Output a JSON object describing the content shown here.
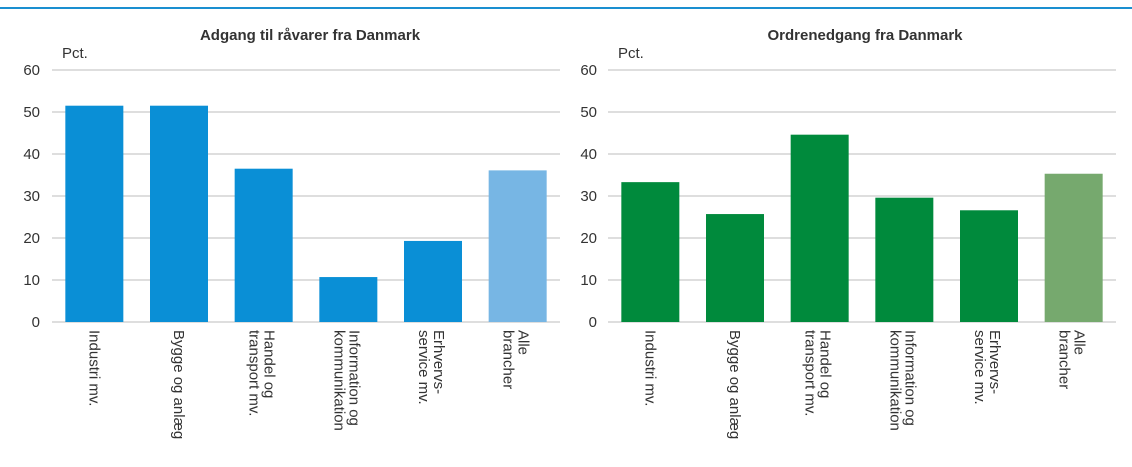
{
  "chart_data": [
    {
      "type": "bar",
      "title": "Adgang til råvarer fra Danmark",
      "y_label": "Pct.",
      "categories": [
        "Industri mv.",
        "Bygge og anlæg",
        "Handel og\ntransport mv.",
        "Information og\nkommunikation",
        "Erhvervs-\nservice mv.",
        "Alle\nbrancher"
      ],
      "values": [
        51.5,
        51.5,
        36.5,
        10.7,
        19.3,
        36.1
      ],
      "colors": [
        "#0a8fd6",
        "#0a8fd6",
        "#0a8fd6",
        "#0a8fd6",
        "#0a8fd6",
        "#77b6e4"
      ],
      "ylim": [
        0,
        60
      ],
      "yticks": [
        0,
        10,
        20,
        30,
        40,
        50,
        60
      ],
      "grid": true
    },
    {
      "type": "bar",
      "title": "Ordrenedgang fra Danmark",
      "y_label": "Pct.",
      "categories": [
        "Industri mv.",
        "Bygge og anlæg",
        "Handel og\ntransport mv.",
        "Information og\nkommunikation",
        "Erhvervs-\nservice mv.",
        "Alle\nbrancher"
      ],
      "values": [
        33.3,
        25.7,
        44.6,
        29.6,
        26.6,
        35.3
      ],
      "colors": [
        "#008a3c",
        "#008a3c",
        "#008a3c",
        "#008a3c",
        "#008a3c",
        "#76a96e"
      ],
      "ylim": [
        0,
        60
      ],
      "yticks": [
        0,
        10,
        20,
        30,
        40,
        50,
        60
      ],
      "grid": true
    }
  ]
}
